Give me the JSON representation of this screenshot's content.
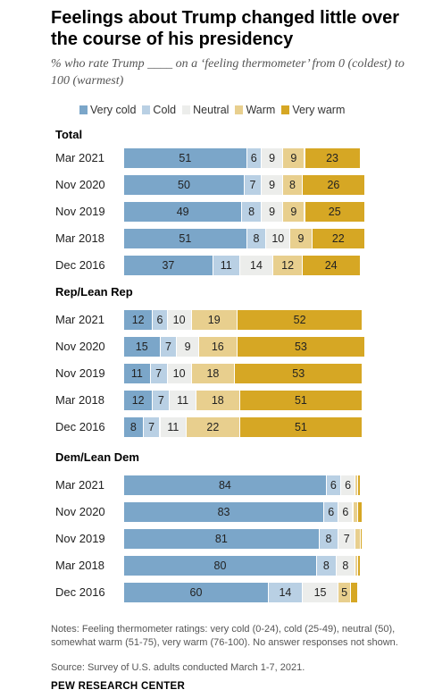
{
  "title": "Feelings about Trump changed little over the course of his presidency",
  "subtitle": "% who rate Trump ____ on a ‘feeling thermometer’ from 0 (coldest) to 100 (warmest)",
  "notes": "Notes: Feeling thermometer ratings: very cold (0-24), cold (25-49), neutral (50), somewhat warm (51-75), very warm (76-100). No answer responses not shown.",
  "source": "Source: Survey of U.S. adults conducted March 1-7, 2021.",
  "brand": "PEW RESEARCH CENTER",
  "chart_data": {
    "type": "bar",
    "orientation": "horizontal",
    "stacked": true,
    "legend": [
      "Very cold",
      "Cold",
      "Neutral",
      "Warm",
      "Very warm"
    ],
    "legend_position": "top",
    "colors": [
      "#7ba6c9",
      "#b9d0e4",
      "#ecedeb",
      "#e8cf8e",
      "#d6a724"
    ],
    "groups": [
      {
        "name": "Total",
        "rows": [
          {
            "label": "Mar 2021",
            "values": [
              51,
              6,
              9,
              9,
              23
            ]
          },
          {
            "label": "Nov 2020",
            "values": [
              50,
              7,
              9,
              8,
              26
            ]
          },
          {
            "label": "Nov 2019",
            "values": [
              49,
              8,
              9,
              9,
              25
            ]
          },
          {
            "label": "Mar 2018",
            "values": [
              51,
              8,
              10,
              9,
              22
            ]
          },
          {
            "label": "Dec 2016",
            "values": [
              37,
              11,
              14,
              12,
              24
            ]
          }
        ]
      },
      {
        "name": "Rep/Lean Rep",
        "rows": [
          {
            "label": "Mar 2021",
            "values": [
              12,
              6,
              10,
              19,
              52
            ]
          },
          {
            "label": "Nov 2020",
            "values": [
              15,
              7,
              9,
              16,
              53
            ]
          },
          {
            "label": "Nov 2019",
            "values": [
              11,
              7,
              10,
              18,
              53
            ]
          },
          {
            "label": "Mar 2018",
            "values": [
              12,
              7,
              11,
              18,
              51
            ]
          },
          {
            "label": "Dec 2016",
            "values": [
              8,
              7,
              11,
              22,
              51
            ]
          }
        ]
      },
      {
        "name": "Dem/Lean Dem",
        "rows": [
          {
            "label": "Mar 2021",
            "values": [
              84,
              6,
              6,
              1,
              1
            ]
          },
          {
            "label": "Nov 2020",
            "values": [
              83,
              6,
              6,
              2,
              2
            ]
          },
          {
            "label": "Nov 2019",
            "values": [
              81,
              8,
              7,
              2,
              1
            ]
          },
          {
            "label": "Mar 2018",
            "values": [
              80,
              8,
              8,
              1,
              1
            ]
          },
          {
            "label": "Dec 2016",
            "values": [
              60,
              14,
              15,
              5,
              3
            ]
          }
        ],
        "unlabeled_segments": [
          [
            3,
            4
          ],
          [
            3,
            4
          ],
          [
            3,
            4
          ],
          [
            3,
            4
          ],
          [
            4
          ]
        ]
      }
    ]
  }
}
